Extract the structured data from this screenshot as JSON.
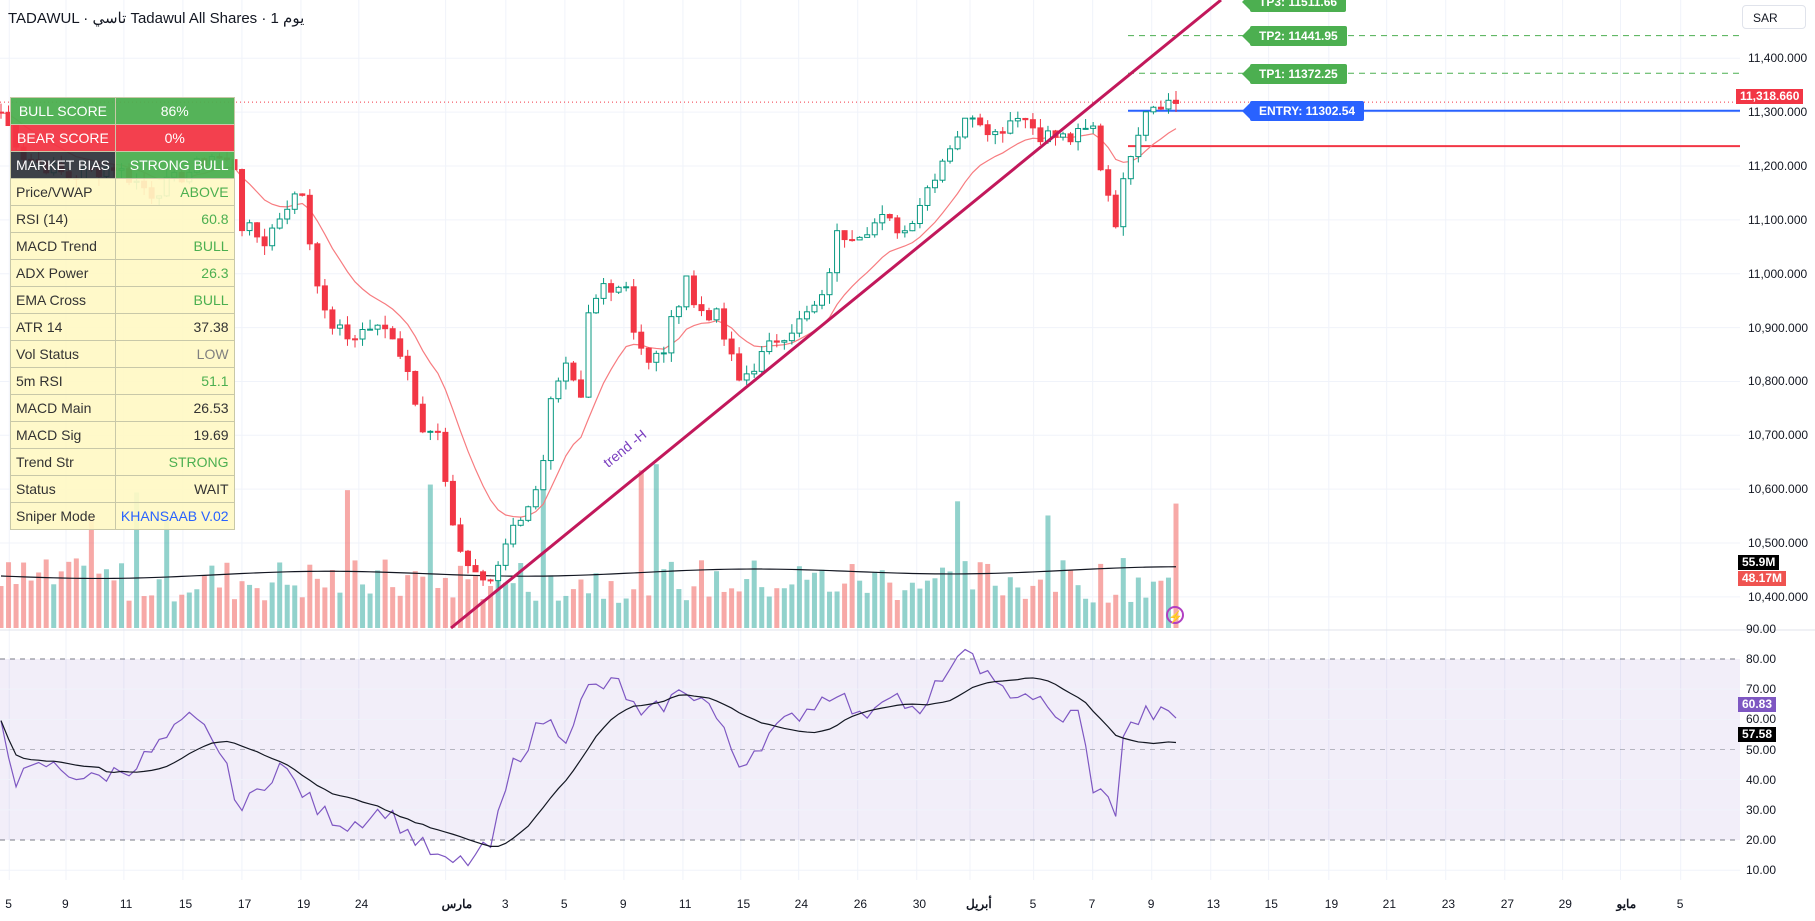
{
  "header": {
    "title": "TADAWUL · تاسي Tadawul All Shares · 1 يوم",
    "currency": "SAR"
  },
  "price_axis": {
    "ticks": [
      "11,400.000",
      "11,300.000",
      "11,200.000",
      "11,100.000",
      "11,000.000",
      "10,900.000",
      "10,800.000",
      "10,700.000",
      "10,600.000",
      "10,500.000",
      "10,400.000"
    ],
    "tick_values": [
      11400,
      11300,
      11200,
      11100,
      11000,
      10900,
      10800,
      10700,
      10600,
      10500,
      10400
    ],
    "last_price": "11,318.660",
    "volume_ma": "55.9M",
    "volume": "48.17M"
  },
  "rsi_axis": {
    "ticks": [
      "90.00",
      "80.00",
      "70.00",
      "60.00",
      "50.00",
      "40.00",
      "30.00",
      "20.00",
      "10.00"
    ],
    "tick_values": [
      90,
      80,
      70,
      60,
      50,
      40,
      30,
      20,
      10
    ],
    "rsi_value": "60.83",
    "rsi_ma_value": "57.58"
  },
  "time_axis": [
    "5",
    "9",
    "11",
    "15",
    "17",
    "19",
    "24",
    "مارس",
    "3",
    "5",
    "9",
    "11",
    "15",
    "24",
    "26",
    "30",
    "أبريل",
    "5",
    "7",
    "9",
    "13",
    "15",
    "19",
    "21",
    "23",
    "27",
    "29",
    "مايو",
    "5"
  ],
  "levels": {
    "tp3": "TP3: 11511.66",
    "tp2": "TP2: 11441.95",
    "tp1": "TP1: 11372.25",
    "entry": "ENTRY: 11302.54",
    "tp2_value": 11441.95,
    "tp1_value": 11372.25,
    "entry_value": 11302.54,
    "stop_value": 11237,
    "last_value": 11318.66
  },
  "trendline_label": "trend -H",
  "panel": {
    "bull_score": {
      "label": "BULL SCORE",
      "value": "86%"
    },
    "bear_score": {
      "label": "BEAR SCORE",
      "value": "0%"
    },
    "market_bias": {
      "label": "MARKET BIAS",
      "value": "STRONG BULL"
    },
    "rows": [
      {
        "label": "Price/VWAP",
        "value": "ABOVE",
        "color": "#4caf50"
      },
      {
        "label": "RSI (14)",
        "value": "60.8",
        "color": "#4caf50"
      },
      {
        "label": "MACD Trend",
        "value": "BULL",
        "color": "#4caf50"
      },
      {
        "label": "ADX Power",
        "value": "26.3",
        "color": "#4caf50"
      },
      {
        "label": "EMA Cross",
        "value": "BULL",
        "color": "#4caf50"
      },
      {
        "label": "ATR 14",
        "value": "37.38",
        "color": "#333333"
      },
      {
        "label": "Vol Status",
        "value": "LOW",
        "color": "#808080"
      },
      {
        "label": "5m RSI",
        "value": "51.1",
        "color": "#4caf50"
      },
      {
        "label": "MACD Main",
        "value": "26.53",
        "color": "#333333"
      },
      {
        "label": "MACD Sig",
        "value": "19.69",
        "color": "#333333"
      },
      {
        "label": "Trend Str",
        "value": "STRONG",
        "color": "#4caf50"
      },
      {
        "label": "Status",
        "value": "WAIT",
        "color": "#333333"
      },
      {
        "label": "Sniper Mode",
        "value": "KHANSAAB V.02",
        "color": "#2962ff"
      }
    ]
  },
  "colors": {
    "up": "#089981",
    "down": "#f23645",
    "rsi": "#7e57c2",
    "trend": "#c2185b",
    "ema": "#f77c80"
  },
  "series": {
    "price_keypoints": [
      [
        0,
        11300
      ],
      [
        3,
        11220
      ],
      [
        9,
        11180
      ],
      [
        15,
        11200
      ],
      [
        20,
        11150
      ],
      [
        25,
        11190
      ],
      [
        28,
        11220
      ],
      [
        31,
        11200
      ],
      [
        32,
        11090
      ],
      [
        35,
        11060
      ],
      [
        38,
        11130
      ],
      [
        40,
        11150
      ],
      [
        41,
        11060
      ],
      [
        43,
        10920
      ],
      [
        46,
        10880
      ],
      [
        49,
        10900
      ],
      [
        52,
        10890
      ],
      [
        54,
        10820
      ],
      [
        56,
        10720
      ],
      [
        58,
        10700
      ],
      [
        60,
        10520
      ],
      [
        62,
        10460
      ],
      [
        65,
        10420
      ],
      [
        68,
        10540
      ],
      [
        70,
        10560
      ],
      [
        72,
        10660
      ],
      [
        73,
        10760
      ],
      [
        75,
        10820
      ],
      [
        77,
        10760
      ],
      [
        78,
        10920
      ],
      [
        80,
        10980
      ],
      [
        83,
        10980
      ],
      [
        84,
        10900
      ],
      [
        86,
        10830
      ],
      [
        88,
        10860
      ],
      [
        91,
        11000
      ],
      [
        92,
        10940
      ],
      [
        95,
        10920
      ],
      [
        98,
        10800
      ],
      [
        100,
        10830
      ],
      [
        103,
        10880
      ],
      [
        106,
        10910
      ],
      [
        109,
        10950
      ],
      [
        111,
        11070
      ],
      [
        114,
        11080
      ],
      [
        117,
        11100
      ],
      [
        120,
        11080
      ],
      [
        123,
        11160
      ],
      [
        126,
        11240
      ],
      [
        129,
        11300
      ],
      [
        132,
        11260
      ],
      [
        135,
        11300
      ],
      [
        138,
        11260
      ],
      [
        142,
        11250
      ],
      [
        145,
        11270
      ],
      [
        146,
        11200
      ],
      [
        148,
        11100
      ],
      [
        150,
        11230
      ],
      [
        152,
        11310
      ],
      [
        154,
        11320
      ],
      [
        156,
        11318
      ]
    ],
    "rsi_keypoints": [
      [
        0,
        60
      ],
      [
        2,
        40
      ],
      [
        6,
        45
      ],
      [
        12,
        40
      ],
      [
        18,
        45
      ],
      [
        25,
        60
      ],
      [
        28,
        55
      ],
      [
        32,
        30
      ],
      [
        37,
        45
      ],
      [
        42,
        30
      ],
      [
        46,
        25
      ],
      [
        51,
        30
      ],
      [
        55,
        20
      ],
      [
        59,
        12
      ],
      [
        62,
        13
      ],
      [
        65,
        18
      ],
      [
        68,
        45
      ],
      [
        72,
        60
      ],
      [
        75,
        55
      ],
      [
        78,
        70
      ],
      [
        82,
        72
      ],
      [
        85,
        60
      ],
      [
        88,
        65
      ],
      [
        91,
        70
      ],
      [
        94,
        65
      ],
      [
        98,
        45
      ],
      [
        102,
        55
      ],
      [
        106,
        62
      ],
      [
        111,
        70
      ],
      [
        114,
        60
      ],
      [
        118,
        70
      ],
      [
        122,
        60
      ],
      [
        125,
        75
      ],
      [
        129,
        82
      ],
      [
        132,
        70
      ],
      [
        137,
        68
      ],
      [
        140,
        60
      ],
      [
        143,
        62
      ],
      [
        145,
        38
      ],
      [
        148,
        30
      ],
      [
        149,
        55
      ],
      [
        152,
        62
      ],
      [
        156,
        61
      ]
    ]
  }
}
